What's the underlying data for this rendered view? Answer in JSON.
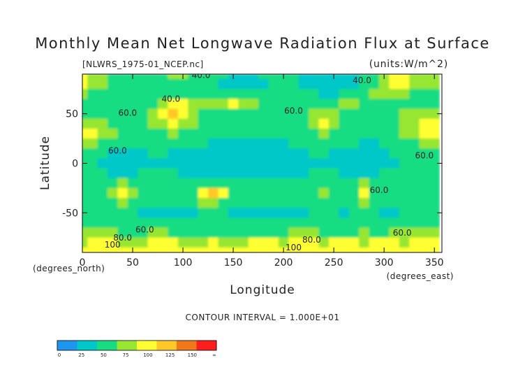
{
  "chart_data": {
    "type": "heatmap",
    "title": "Monthly Mean Net Longwave Radiation Flux at Surface",
    "file_label": "[NLWRS_1975-01_NCEP.nc]",
    "units_label": "(units:W/m^2)",
    "xlabel": "Longitude",
    "ylabel": "Latitude",
    "x_unit_note": "(degrees_east)",
    "y_unit_note": "(degrees_north)",
    "xlim": [
      0,
      357.5
    ],
    "ylim": [
      -90,
      90
    ],
    "x_ticks": [
      0,
      50,
      100,
      150,
      200,
      250,
      300,
      350
    ],
    "y_ticks": [
      50,
      0,
      -50
    ],
    "contour_interval_text": "CONTOUR INTERVAL = 1.000E+01",
    "contour_labels": [
      {
        "text": "40.0",
        "x": 118,
        "y": 86
      },
      {
        "text": "40.0",
        "x": 278,
        "y": 81
      },
      {
        "text": "40.0",
        "x": 88,
        "y": 62
      },
      {
        "text": "60.0",
        "x": 210,
        "y": 50
      },
      {
        "text": "60.0",
        "x": 45,
        "y": 48
      },
      {
        "text": "60.0",
        "x": 35,
        "y": 10
      },
      {
        "text": "60.0",
        "x": 340,
        "y": 5
      },
      {
        "text": "60.0",
        "x": 295,
        "y": -30
      },
      {
        "text": "60.0",
        "x": 62,
        "y": -70
      },
      {
        "text": "80.0",
        "x": 40,
        "y": -78
      },
      {
        "text": "60.0",
        "x": 318,
        "y": -73
      },
      {
        "text": "80.0",
        "x": 228,
        "y": -80
      },
      {
        "text": "100",
        "x": 30,
        "y": -85
      },
      {
        "text": "100",
        "x": 210,
        "y": -88
      }
    ],
    "colorbar": {
      "tick_labels": [
        "0",
        "25",
        "50",
        "75",
        "100",
        "125",
        "150",
        "∞"
      ],
      "colors": [
        "#1e96f0",
        "#00c8c8",
        "#19dc82",
        "#96e632",
        "#ffff32",
        "#ffc828",
        "#f07818",
        "#ff1e1e"
      ]
    },
    "values_grid": {
      "lon_step": 10,
      "lat_rows": [
        90,
        80,
        70,
        60,
        50,
        40,
        30,
        20,
        10,
        0,
        -10,
        -20,
        -30,
        -40,
        -50,
        -60,
        -70,
        -80,
        -90
      ],
      "values": [
        [
          110,
          95,
          80,
          70,
          60,
          60,
          55,
          60,
          70,
          80,
          85,
          70,
          60,
          55,
          50,
          40,
          40,
          45,
          50,
          55,
          60,
          55,
          45,
          35,
          30,
          35,
          40,
          45,
          55,
          70,
          90,
          110,
          110,
          95,
          85,
          95
        ],
        [
          100,
          85,
          75,
          65,
          55,
          50,
          50,
          55,
          60,
          65,
          70,
          65,
          60,
          50,
          45,
          40,
          35,
          40,
          45,
          50,
          55,
          50,
          45,
          35,
          30,
          30,
          35,
          45,
          55,
          70,
          85,
          100,
          100,
          90,
          80,
          90
        ],
        [
          75,
          70,
          65,
          60,
          55,
          50,
          50,
          55,
          60,
          65,
          70,
          70,
          65,
          60,
          60,
          65,
          70,
          70,
          60,
          55,
          55,
          60,
          55,
          50,
          45,
          45,
          55,
          60,
          65,
          75,
          85,
          90,
          80,
          70,
          60,
          70
        ],
        [
          65,
          60,
          60,
          55,
          55,
          50,
          55,
          70,
          95,
          110,
          105,
          90,
          75,
          80,
          95,
          105,
          95,
          80,
          70,
          60,
          60,
          60,
          55,
          55,
          55,
          60,
          75,
          85,
          70,
          65,
          60,
          60,
          65,
          70,
          65,
          65
        ],
        [
          70,
          65,
          60,
          60,
          55,
          55,
          60,
          80,
          120,
          130,
          115,
          85,
          70,
          60,
          60,
          55,
          55,
          55,
          60,
          60,
          55,
          55,
          60,
          75,
          95,
          80,
          60,
          55,
          60,
          65,
          70,
          70,
          75,
          80,
          85,
          75
        ],
        [
          95,
          85,
          75,
          70,
          65,
          60,
          65,
          80,
          95,
          100,
          90,
          75,
          65,
          60,
          55,
          55,
          55,
          60,
          60,
          55,
          55,
          55,
          65,
          80,
          100,
          90,
          70,
          60,
          55,
          55,
          60,
          70,
          85,
          95,
          105,
          100
        ],
        [
          110,
          100,
          85,
          75,
          65,
          60,
          60,
          65,
          70,
          75,
          70,
          65,
          60,
          60,
          55,
          55,
          60,
          60,
          60,
          55,
          55,
          55,
          60,
          70,
          75,
          70,
          60,
          55,
          55,
          55,
          60,
          65,
          75,
          85,
          100,
          110
        ],
        [
          85,
          75,
          65,
          60,
          55,
          50,
          55,
          60,
          60,
          55,
          55,
          50,
          50,
          45,
          45,
          45,
          45,
          45,
          45,
          45,
          45,
          50,
          55,
          60,
          60,
          55,
          50,
          50,
          45,
          45,
          50,
          55,
          60,
          65,
          75,
          85
        ],
        [
          60,
          55,
          50,
          45,
          40,
          40,
          45,
          50,
          50,
          45,
          45,
          40,
          40,
          40,
          40,
          35,
          35,
          35,
          35,
          35,
          40,
          40,
          45,
          50,
          50,
          45,
          40,
          40,
          40,
          40,
          45,
          50,
          55,
          60,
          60,
          60
        ],
        [
          55,
          50,
          45,
          40,
          40,
          40,
          40,
          45,
          45,
          40,
          40,
          40,
          35,
          35,
          35,
          35,
          35,
          35,
          35,
          35,
          35,
          40,
          40,
          45,
          45,
          40,
          35,
          35,
          40,
          40,
          40,
          45,
          50,
          55,
          55,
          55
        ],
        [
          60,
          55,
          50,
          45,
          45,
          45,
          50,
          55,
          55,
          50,
          45,
          45,
          45,
          40,
          40,
          40,
          40,
          40,
          40,
          40,
          40,
          45,
          45,
          50,
          55,
          50,
          45,
          45,
          45,
          45,
          50,
          50,
          55,
          60,
          60,
          60
        ],
        [
          65,
          60,
          60,
          70,
          85,
          70,
          60,
          60,
          60,
          55,
          55,
          60,
          65,
          70,
          60,
          55,
          55,
          55,
          55,
          55,
          55,
          55,
          55,
          60,
          65,
          60,
          55,
          60,
          75,
          60,
          55,
          55,
          60,
          65,
          65,
          65
        ],
        [
          60,
          55,
          65,
          85,
          110,
          85,
          60,
          55,
          55,
          55,
          55,
          70,
          120,
          140,
          110,
          70,
          60,
          55,
          55,
          55,
          55,
          55,
          60,
          65,
          75,
          70,
          60,
          70,
          100,
          65,
          55,
          55,
          60,
          60,
          60,
          60
        ],
        [
          55,
          55,
          60,
          70,
          80,
          65,
          55,
          50,
          50,
          50,
          50,
          55,
          75,
          85,
          70,
          55,
          50,
          50,
          50,
          50,
          50,
          50,
          50,
          55,
          60,
          55,
          55,
          60,
          85,
          60,
          50,
          50,
          55,
          55,
          55,
          55
        ],
        [
          55,
          50,
          50,
          55,
          55,
          50,
          45,
          45,
          45,
          45,
          45,
          45,
          50,
          50,
          50,
          45,
          45,
          45,
          45,
          45,
          45,
          45,
          45,
          50,
          50,
          50,
          45,
          50,
          60,
          50,
          45,
          45,
          50,
          50,
          50,
          55
        ],
        [
          65,
          60,
          55,
          55,
          55,
          55,
          50,
          50,
          50,
          55,
          55,
          55,
          55,
          55,
          55,
          50,
          50,
          50,
          50,
          55,
          55,
          55,
          55,
          55,
          55,
          55,
          55,
          55,
          55,
          55,
          55,
          55,
          55,
          60,
          60,
          65
        ],
        [
          75,
          80,
          85,
          75,
          70,
          70,
          70,
          75,
          75,
          70,
          65,
          65,
          65,
          60,
          60,
          60,
          60,
          65,
          65,
          70,
          70,
          75,
          80,
          75,
          70,
          65,
          65,
          70,
          75,
          70,
          70,
          75,
          80,
          80,
          75,
          75
        ],
        [
          95,
          100,
          110,
          100,
          95,
          90,
          95,
          100,
          105,
          100,
          95,
          90,
          95,
          100,
          95,
          90,
          95,
          100,
          105,
          100,
          95,
          100,
          105,
          100,
          95,
          100,
          105,
          100,
          95,
          100,
          105,
          100,
          95,
          100,
          105,
          100
        ],
        [
          110,
          115,
          120,
          115,
          110,
          115,
          120,
          115,
          110,
          115,
          120,
          115,
          110,
          115,
          120,
          115,
          110,
          115,
          120,
          115,
          110,
          115,
          120,
          115,
          110,
          115,
          120,
          115,
          110,
          115,
          120,
          115,
          110,
          115,
          120,
          115
        ]
      ]
    }
  }
}
